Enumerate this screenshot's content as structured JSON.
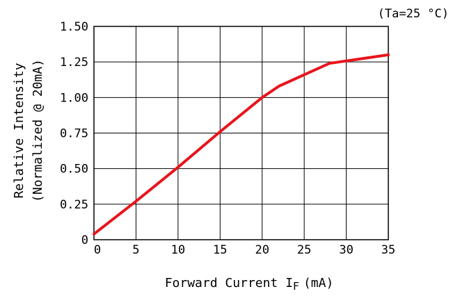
{
  "chart_data": {
    "type": "line",
    "condition": "(Ta=25 °C)",
    "xlabel": {
      "main": "Forward Current I",
      "subscript": "F",
      "unit": "(mA)"
    },
    "ylabel": {
      "line1": "Relative Intensity",
      "line2": "(Normalized @ 20mA)"
    },
    "xlim": [
      0,
      35
    ],
    "ylim": [
      0,
      1.5
    ],
    "x_ticks": [
      "0",
      "5",
      "10",
      "15",
      "20",
      "25",
      "30",
      "35"
    ],
    "y_ticks": [
      "0",
      "0.25",
      "0.50",
      "0.75",
      "1.00",
      "1.25",
      "1.50"
    ],
    "grid": true,
    "series": [
      {
        "color": "#e8141b",
        "x": [
          0,
          5,
          10,
          15,
          20,
          22,
          25,
          28,
          35
        ],
        "y": [
          0.04,
          0.27,
          0.51,
          0.76,
          1.0,
          1.08,
          1.16,
          1.24,
          1.3
        ]
      }
    ]
  }
}
